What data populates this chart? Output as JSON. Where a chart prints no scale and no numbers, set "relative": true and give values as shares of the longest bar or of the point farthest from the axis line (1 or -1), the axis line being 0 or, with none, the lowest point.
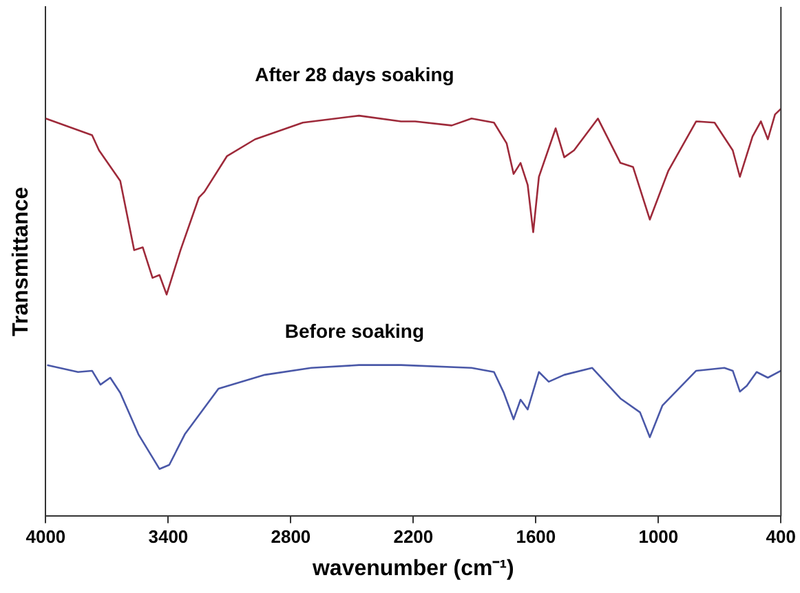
{
  "chart_data": {
    "type": "line",
    "relative": true,
    "xlabel": "wavenumber (cm⁻¹)",
    "ylabel": "Transmittance",
    "xlim": [
      4000,
      400
    ],
    "xticks": [
      4000,
      3400,
      2800,
      2200,
      1600,
      1000,
      400
    ],
    "grid": false,
    "legend": false,
    "marker": "none",
    "line_style": "solid",
    "series": [
      {
        "name": "After 28 days soaking",
        "color": "#9e2a3a",
        "x": [
          4000,
          3773,
          3739,
          3635,
          3567,
          3525,
          3477,
          3443,
          3408,
          3340,
          3250,
          3223,
          3112,
          2975,
          2741,
          2466,
          2260,
          2191,
          2012,
          1915,
          1805,
          1743,
          1709,
          1675,
          1640,
          1613,
          1585,
          1503,
          1461,
          1413,
          1296,
          1186,
          1124,
          1042,
          952,
          815,
          725,
          636,
          601,
          539,
          498,
          464,
          429,
          400
        ],
        "values": [
          0.976,
          0.935,
          0.898,
          0.823,
          0.653,
          0.66,
          0.585,
          0.592,
          0.544,
          0.653,
          0.782,
          0.796,
          0.884,
          0.925,
          0.966,
          0.983,
          0.969,
          0.969,
          0.959,
          0.976,
          0.966,
          0.915,
          0.84,
          0.867,
          0.813,
          0.697,
          0.833,
          0.952,
          0.881,
          0.898,
          0.976,
          0.867,
          0.857,
          0.728,
          0.847,
          0.969,
          0.966,
          0.898,
          0.833,
          0.932,
          0.969,
          0.925,
          0.986,
          1.0
        ]
      },
      {
        "name": "Before soaking",
        "color": "#4a58a8",
        "x": [
          3993,
          3842,
          3773,
          3732,
          3684,
          3635,
          3546,
          3443,
          3395,
          3319,
          3154,
          2927,
          2700,
          2466,
          2260,
          1915,
          1805,
          1757,
          1709,
          1675,
          1640,
          1585,
          1537,
          1461,
          1324,
          1186,
          1090,
          1042,
          980,
          815,
          677,
          636,
          601,
          567,
          519,
          464,
          400
        ],
        "values": [
          0.371,
          0.354,
          0.357,
          0.323,
          0.34,
          0.303,
          0.201,
          0.116,
          0.126,
          0.201,
          0.313,
          0.347,
          0.364,
          0.371,
          0.371,
          0.364,
          0.354,
          0.303,
          0.238,
          0.286,
          0.262,
          0.354,
          0.33,
          0.347,
          0.364,
          0.289,
          0.255,
          0.194,
          0.272,
          0.357,
          0.364,
          0.357,
          0.306,
          0.32,
          0.354,
          0.34,
          0.357
        ]
      }
    ]
  }
}
